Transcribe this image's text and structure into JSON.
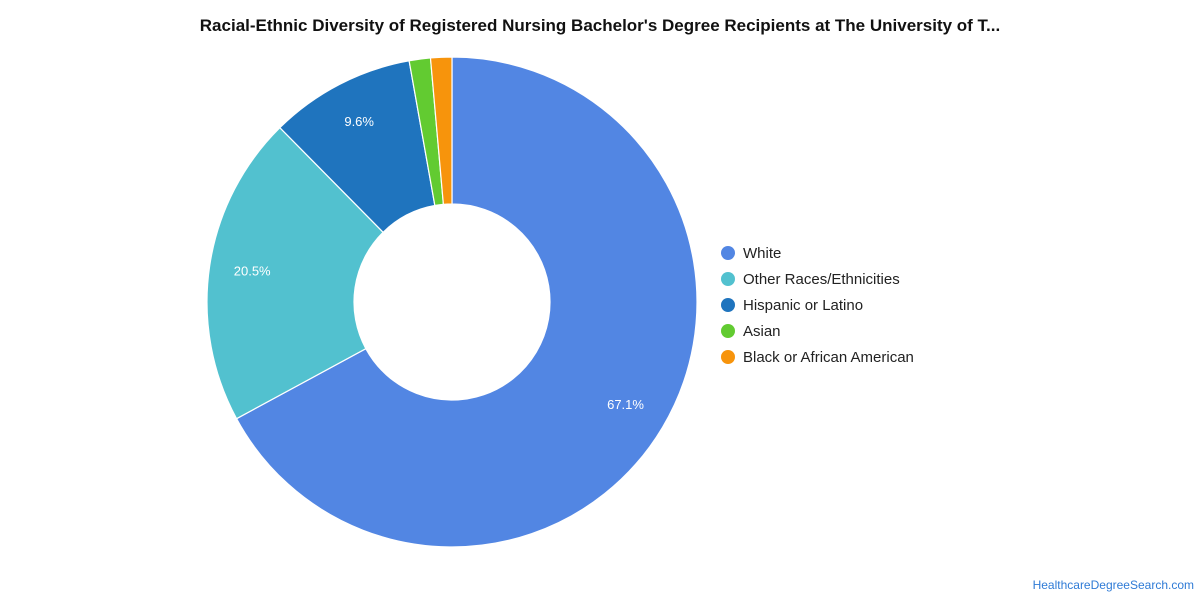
{
  "chart_data": {
    "type": "pie",
    "variant": "donut",
    "title": "Racial-Ethnic Diversity of Registered Nursing Bachelor's Degree Recipients at The University of T...",
    "categories": [
      "White",
      "Other Races/Ethnicities",
      "Hispanic or Latino",
      "Asian",
      "Black or African American"
    ],
    "values": [
      67.1,
      20.5,
      9.6,
      1.4,
      1.4
    ],
    "value_labels": [
      "67.1%",
      "20.5%",
      "9.6%",
      "",
      ""
    ],
    "colors": [
      "#5286E3",
      "#52C1CF",
      "#1F74BE",
      "#62CB31",
      "#F7940C"
    ],
    "legend_position": "right",
    "start_angle": "top, clockwise"
  },
  "source": "HealthcareDegreeSearch.com"
}
